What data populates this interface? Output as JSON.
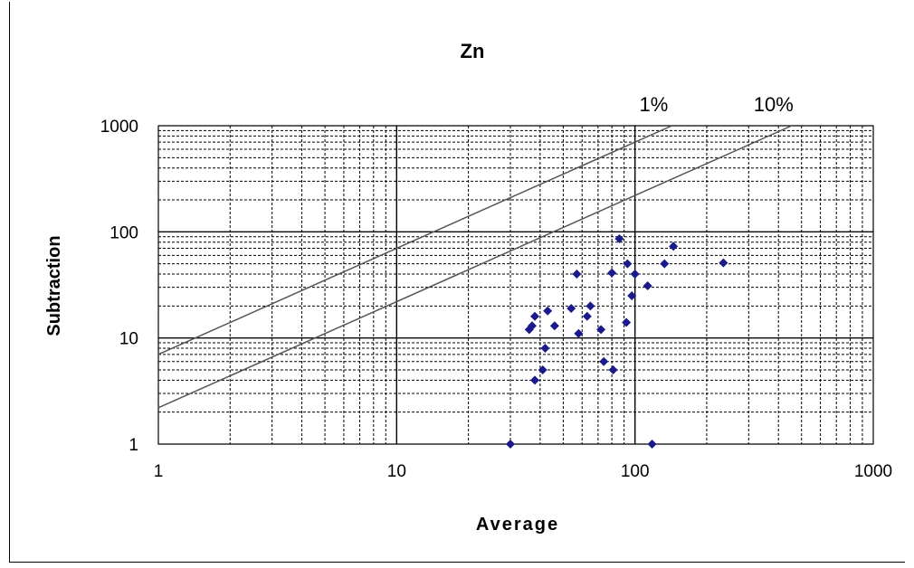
{
  "chart_data": {
    "type": "scatter",
    "title": "Zn",
    "xlabel": "Average",
    "ylabel": "Subtraction",
    "xscale": "log",
    "yscale": "log",
    "xlim": [
      1,
      1000
    ],
    "ylim": [
      1,
      1000
    ],
    "grid": true,
    "x_ticks": [
      "1",
      "10",
      "100",
      "1000"
    ],
    "y_ticks": [
      "1",
      "10",
      "100",
      "1000"
    ],
    "marker_color": "#1a1a8c",
    "line_color": "#555555",
    "reference_lines": [
      {
        "label": "1%",
        "at_x1": 7,
        "at_x1000": 2400
      },
      {
        "label": "10%",
        "at_x1": 2.2,
        "at_x1000": 990
      }
    ],
    "points": [
      {
        "x": 30,
        "y": 1
      },
      {
        "x": 36,
        "y": 12
      },
      {
        "x": 37,
        "y": 13
      },
      {
        "x": 38,
        "y": 16
      },
      {
        "x": 38,
        "y": 4
      },
      {
        "x": 41,
        "y": 5
      },
      {
        "x": 42,
        "y": 8
      },
      {
        "x": 43,
        "y": 18
      },
      {
        "x": 46,
        "y": 13
      },
      {
        "x": 54,
        "y": 19
      },
      {
        "x": 57,
        "y": 40
      },
      {
        "x": 58,
        "y": 11
      },
      {
        "x": 63,
        "y": 16
      },
      {
        "x": 65,
        "y": 20
      },
      {
        "x": 72,
        "y": 12
      },
      {
        "x": 74,
        "y": 6
      },
      {
        "x": 80,
        "y": 41
      },
      {
        "x": 81,
        "y": 5
      },
      {
        "x": 86,
        "y": 86
      },
      {
        "x": 92,
        "y": 14
      },
      {
        "x": 93,
        "y": 50
      },
      {
        "x": 97,
        "y": 25
      },
      {
        "x": 100,
        "y": 40
      },
      {
        "x": 113,
        "y": 31
      },
      {
        "x": 118,
        "y": 1
      },
      {
        "x": 133,
        "y": 50
      },
      {
        "x": 145,
        "y": 73
      },
      {
        "x": 235,
        "y": 51
      }
    ]
  }
}
